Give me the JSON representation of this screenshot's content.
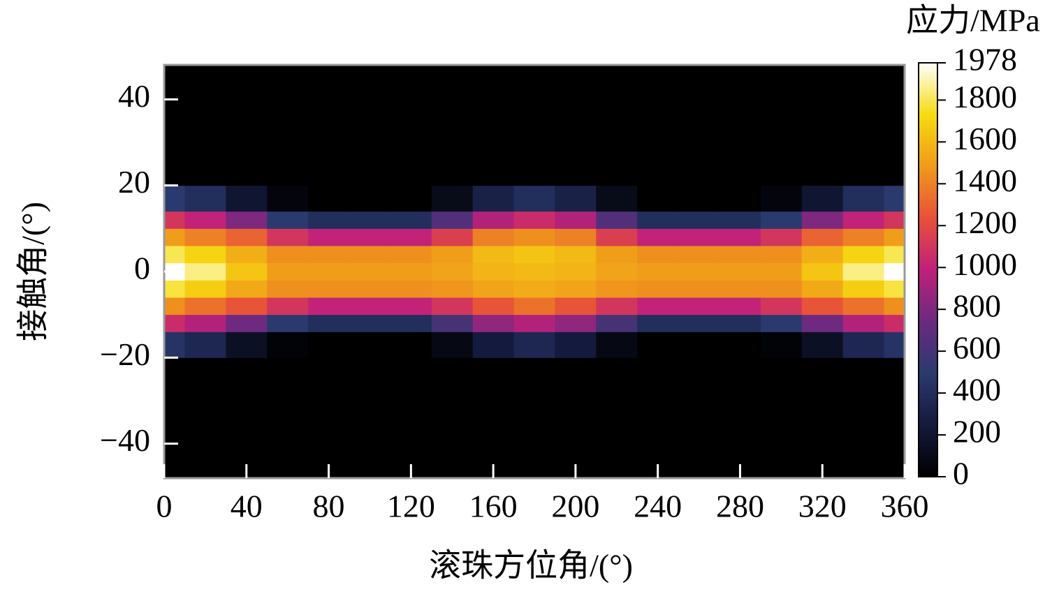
{
  "chart_data": {
    "type": "heatmap",
    "xlabel": "滚珠方位角/(°)",
    "ylabel": "接触角/(°)",
    "colorbar_label": "应力/MPa",
    "x": [
      0,
      20,
      40,
      60,
      80,
      100,
      120,
      140,
      160,
      180,
      200,
      220,
      240,
      260,
      280,
      300,
      320,
      340,
      360
    ],
    "y": [
      -48,
      -24,
      -16,
      -12,
      -8,
      -4,
      0,
      4,
      8,
      12,
      16,
      24,
      48
    ],
    "z": [
      [
        0,
        0,
        0,
        0,
        0,
        0,
        0,
        0,
        0,
        0,
        0,
        0,
        0,
        0,
        0,
        0,
        0,
        0,
        0
      ],
      [
        0,
        0,
        0,
        0,
        0,
        0,
        0,
        0,
        0,
        0,
        0,
        0,
        0,
        0,
        0,
        0,
        0,
        0,
        0
      ],
      [
        450,
        350,
        150,
        30,
        0,
        0,
        0,
        80,
        250,
        350,
        250,
        80,
        0,
        0,
        0,
        30,
        150,
        350,
        450
      ],
      [
        1050,
        950,
        750,
        500,
        400,
        400,
        400,
        600,
        850,
        950,
        850,
        600,
        400,
        400,
        400,
        500,
        750,
        950,
        1050
      ],
      [
        1450,
        1350,
        1250,
        1100,
        1000,
        1000,
        1000,
        1100,
        1250,
        1350,
        1250,
        1100,
        1000,
        1000,
        1000,
        1100,
        1250,
        1350,
        1450
      ],
      [
        1780,
        1680,
        1540,
        1450,
        1450,
        1450,
        1450,
        1470,
        1520,
        1550,
        1520,
        1470,
        1450,
        1450,
        1450,
        1450,
        1540,
        1680,
        1780
      ],
      [
        1978,
        1850,
        1650,
        1500,
        1500,
        1500,
        1500,
        1520,
        1580,
        1600,
        1580,
        1520,
        1500,
        1500,
        1500,
        1500,
        1650,
        1850,
        1978
      ],
      [
        1800,
        1700,
        1560,
        1450,
        1450,
        1450,
        1450,
        1500,
        1600,
        1640,
        1600,
        1500,
        1450,
        1450,
        1450,
        1450,
        1560,
        1700,
        1800
      ],
      [
        1500,
        1400,
        1300,
        1100,
        1000,
        1000,
        1000,
        1150,
        1400,
        1450,
        1400,
        1150,
        1000,
        1000,
        1000,
        1100,
        1300,
        1400,
        1500
      ],
      [
        1100,
        1000,
        800,
        500,
        400,
        400,
        400,
        650,
        950,
        1050,
        950,
        650,
        400,
        400,
        400,
        500,
        800,
        1000,
        1100
      ],
      [
        500,
        400,
        200,
        50,
        0,
        0,
        0,
        100,
        300,
        400,
        300,
        100,
        0,
        0,
        0,
        50,
        200,
        400,
        500
      ],
      [
        0,
        0,
        0,
        0,
        0,
        0,
        0,
        0,
        0,
        0,
        0,
        0,
        0,
        0,
        0,
        0,
        0,
        0,
        0
      ],
      [
        0,
        0,
        0,
        0,
        0,
        0,
        0,
        0,
        0,
        0,
        0,
        0,
        0,
        0,
        0,
        0,
        0,
        0,
        0
      ]
    ],
    "xlim": [
      0,
      360
    ],
    "ylim": [
      -48,
      48
    ],
    "xticks": [
      0,
      40,
      80,
      120,
      160,
      200,
      240,
      280,
      320,
      360
    ],
    "yticks": [
      {
        "value": -40,
        "label": "−40"
      },
      {
        "value": -20,
        "label": "−20"
      },
      0,
      20,
      40
    ],
    "clim": [
      0,
      1978
    ],
    "cticks": [
      0,
      200,
      400,
      600,
      800,
      1000,
      1200,
      1400,
      1600,
      1800,
      1978
    ],
    "colors": [
      "#000000",
      "#141a3c",
      "#2a3a6e",
      "#6a2a80",
      "#c0207a",
      "#e8503a",
      "#f09a1a",
      "#f6dc10",
      "#ffffff"
    ]
  }
}
